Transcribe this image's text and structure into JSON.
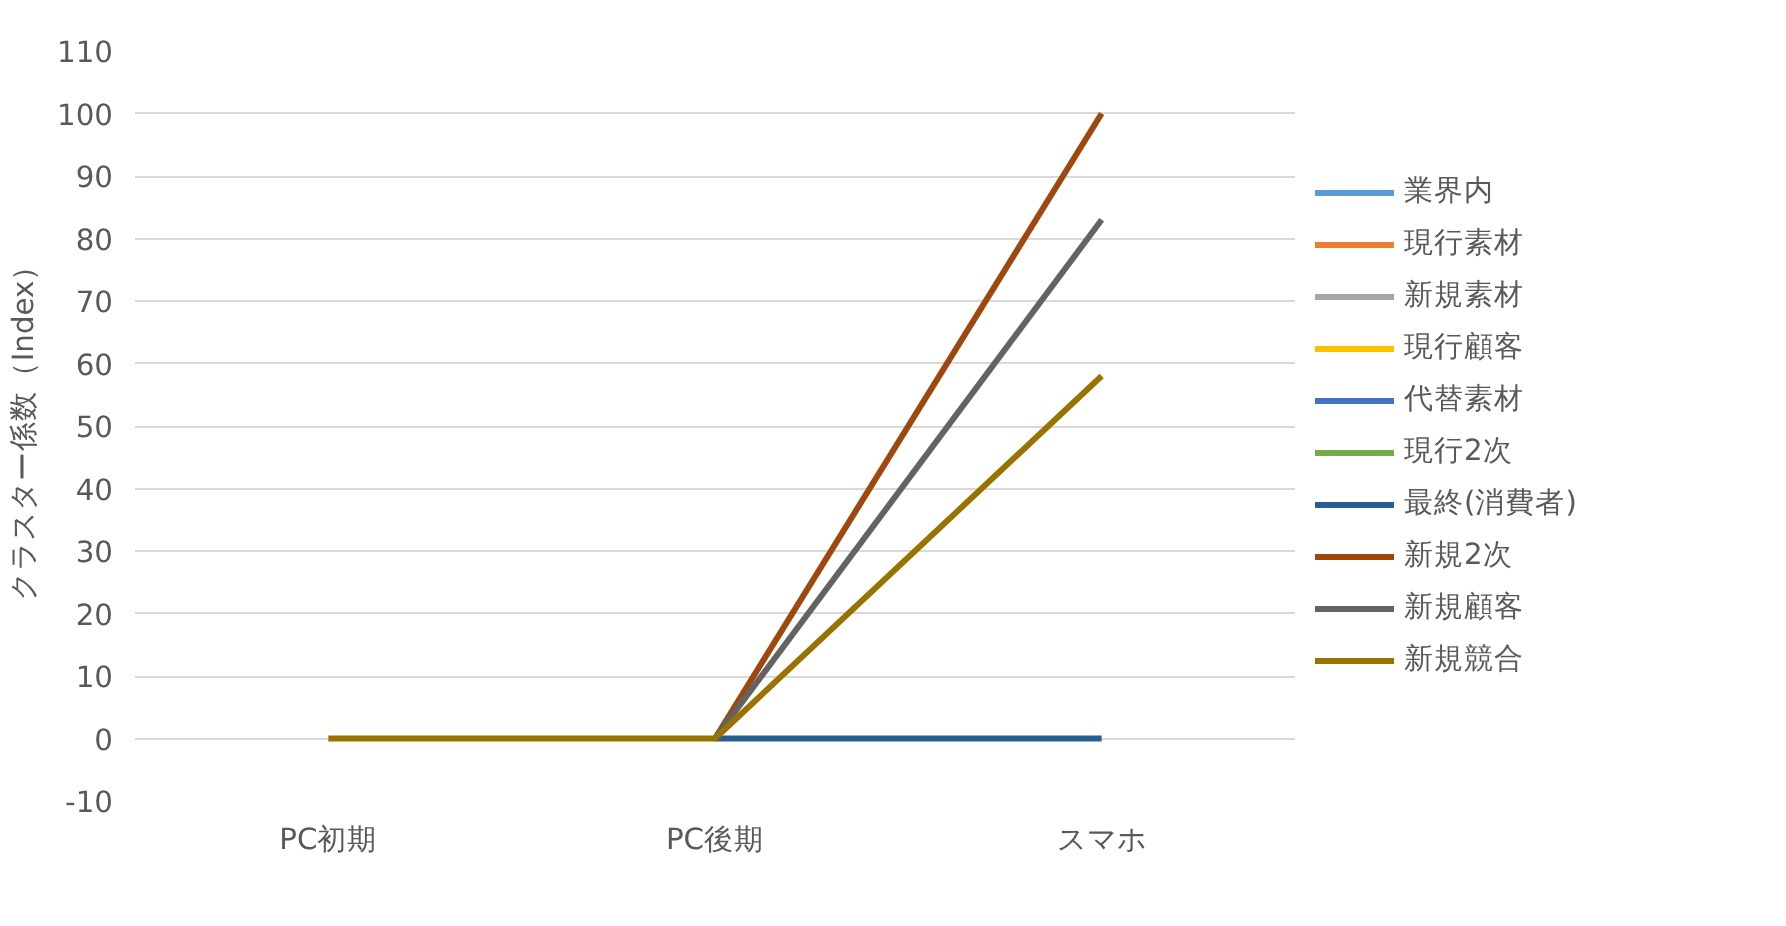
{
  "chart_data": {
    "type": "line",
    "ylabel": "クラスター係数（Index）",
    "categories": [
      "PC初期",
      "PC後期",
      "スマホ"
    ],
    "ylim": [
      -10,
      110
    ],
    "yticks": [
      -10,
      0,
      10,
      20,
      30,
      40,
      50,
      60,
      70,
      80,
      90,
      100,
      110
    ],
    "grid": "y",
    "legend": "right",
    "marker": "none",
    "line_style": "solid",
    "series": [
      {
        "name": "業界内",
        "color": "#5b9bd5",
        "values": [
          null,
          null,
          null
        ]
      },
      {
        "name": "現行素材",
        "color": "#ed7d31",
        "values": [
          null,
          null,
          null
        ]
      },
      {
        "name": "新規素材",
        "color": "#a5a5a5",
        "values": [
          null,
          null,
          null
        ]
      },
      {
        "name": "現行顧客",
        "color": "#ffc000",
        "values": [
          null,
          null,
          null
        ]
      },
      {
        "name": "代替素材",
        "color": "#4472c4",
        "values": [
          null,
          null,
          null
        ]
      },
      {
        "name": "現行2次",
        "color": "#70ad47",
        "values": [
          null,
          null,
          null
        ]
      },
      {
        "name": "最終(消費者)",
        "color": "#255e91",
        "values": [
          null,
          0,
          0
        ]
      },
      {
        "name": "新規2次",
        "color": "#9e480e",
        "values": [
          null,
          0,
          100
        ]
      },
      {
        "name": "新規顧客",
        "color": "#636363",
        "values": [
          null,
          0,
          83
        ]
      },
      {
        "name": "新規競合",
        "color": "#997300",
        "values": [
          0,
          0,
          58
        ]
      }
    ]
  }
}
